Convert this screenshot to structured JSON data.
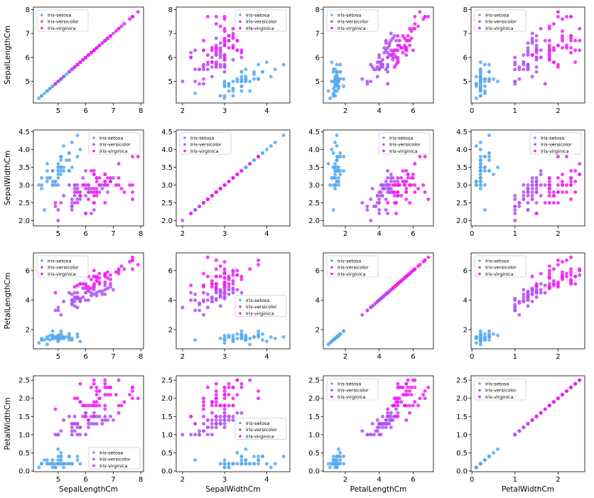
{
  "colors": {
    "Iris-setosa": "#5aaaf0",
    "Iris-versicolor": "#b250f5",
    "Iris-virginica": "#f01ef5"
  },
  "legend_labels": [
    "Iris-setosa",
    "Iris-versicolor",
    "Iris-virginica"
  ],
  "variables": [
    "SepalLengthCm",
    "SepalWidthCm",
    "PetalLengthCm",
    "PetalWidthCm"
  ],
  "axes": {
    "SepalLengthCm": {
      "lim": [
        4.1,
        8.1
      ],
      "ticks": [
        "5",
        "6",
        "7",
        "8"
      ]
    },
    "SepalWidthCm": {
      "lim": [
        1.85,
        4.55
      ],
      "ticks": [
        "2",
        "3",
        "4"
      ]
    },
    "PetalLengthCm": {
      "lim": [
        0.7,
        7.2
      ],
      "ticks": [
        "2",
        "4",
        "6"
      ]
    },
    "PetalWidthCm": {
      "lim": [
        -0.02,
        2.62
      ],
      "ticks": [
        "0",
        "1",
        "2"
      ]
    }
  },
  "ytick_labels": {
    "SepalLengthCm": [
      "5",
      "6",
      "7",
      "8"
    ],
    "SepalWidthCm": [
      "2.0",
      "2.5",
      "3.0",
      "3.5",
      "4.0",
      "4.5"
    ],
    "PetalLengthCm": [
      "2",
      "4",
      "6"
    ],
    "PetalWidthCm": [
      "0.0",
      "0.5",
      "1.0",
      "1.5",
      "2.0",
      "2.5"
    ]
  },
  "legend_positions": [
    [
      "upper-left",
      "upper-right",
      "upper-left",
      "upper-left"
    ],
    [
      "upper-right",
      "upper-left",
      "upper-right",
      "upper-right"
    ],
    [
      "upper-left",
      "center-right",
      "upper-left",
      "upper-left"
    ],
    [
      "lower-right",
      "center-right",
      "upper-left",
      "upper-left"
    ]
  ],
  "chart_data": {
    "type": "scatter",
    "layout": "pairplot 4x4",
    "grid": false,
    "series": [
      {
        "name": "Iris-setosa",
        "columns": [
          "SepalLengthCm",
          "SepalWidthCm",
          "PetalLengthCm",
          "PetalWidthCm"
        ],
        "points": [
          [
            5.1,
            3.5,
            1.4,
            0.2
          ],
          [
            4.9,
            3.0,
            1.4,
            0.2
          ],
          [
            4.7,
            3.2,
            1.3,
            0.2
          ],
          [
            4.6,
            3.1,
            1.5,
            0.2
          ],
          [
            5.0,
            3.6,
            1.4,
            0.2
          ],
          [
            5.4,
            3.9,
            1.7,
            0.4
          ],
          [
            4.6,
            3.4,
            1.4,
            0.3
          ],
          [
            5.0,
            3.4,
            1.5,
            0.2
          ],
          [
            4.4,
            2.9,
            1.4,
            0.2
          ],
          [
            4.9,
            3.1,
            1.5,
            0.1
          ],
          [
            5.4,
            3.7,
            1.5,
            0.2
          ],
          [
            4.8,
            3.4,
            1.6,
            0.2
          ],
          [
            4.8,
            3.0,
            1.4,
            0.1
          ],
          [
            4.3,
            3.0,
            1.1,
            0.1
          ],
          [
            5.8,
            4.0,
            1.2,
            0.2
          ],
          [
            5.7,
            4.4,
            1.5,
            0.4
          ],
          [
            5.4,
            3.9,
            1.3,
            0.4
          ],
          [
            5.1,
            3.5,
            1.4,
            0.3
          ],
          [
            5.7,
            3.8,
            1.7,
            0.3
          ],
          [
            5.1,
            3.8,
            1.5,
            0.3
          ],
          [
            5.4,
            3.4,
            1.7,
            0.2
          ],
          [
            5.1,
            3.7,
            1.5,
            0.4
          ],
          [
            4.6,
            3.6,
            1.0,
            0.2
          ],
          [
            5.1,
            3.3,
            1.7,
            0.5
          ],
          [
            4.8,
            3.4,
            1.9,
            0.2
          ],
          [
            5.0,
            3.0,
            1.6,
            0.2
          ],
          [
            5.0,
            3.4,
            1.6,
            0.4
          ],
          [
            5.2,
            3.5,
            1.5,
            0.2
          ],
          [
            5.2,
            3.4,
            1.4,
            0.2
          ],
          [
            4.7,
            3.2,
            1.6,
            0.2
          ],
          [
            4.8,
            3.1,
            1.6,
            0.2
          ],
          [
            5.4,
            3.4,
            1.5,
            0.4
          ],
          [
            5.2,
            4.1,
            1.5,
            0.1
          ],
          [
            5.5,
            4.2,
            1.4,
            0.2
          ],
          [
            4.9,
            3.1,
            1.5,
            0.1
          ],
          [
            5.0,
            3.2,
            1.2,
            0.2
          ],
          [
            5.5,
            3.5,
            1.3,
            0.2
          ],
          [
            4.9,
            3.1,
            1.5,
            0.1
          ],
          [
            4.4,
            3.0,
            1.3,
            0.2
          ],
          [
            5.1,
            3.4,
            1.5,
            0.2
          ],
          [
            5.0,
            3.5,
            1.3,
            0.3
          ],
          [
            4.5,
            2.3,
            1.3,
            0.3
          ],
          [
            4.4,
            3.2,
            1.3,
            0.2
          ],
          [
            5.0,
            3.5,
            1.6,
            0.6
          ],
          [
            5.1,
            3.8,
            1.9,
            0.4
          ],
          [
            4.8,
            3.0,
            1.4,
            0.3
          ],
          [
            5.1,
            3.8,
            1.6,
            0.2
          ],
          [
            4.6,
            3.2,
            1.4,
            0.2
          ],
          [
            5.3,
            3.7,
            1.5,
            0.2
          ],
          [
            5.0,
            3.3,
            1.4,
            0.2
          ]
        ]
      },
      {
        "name": "Iris-versicolor",
        "columns": [
          "SepalLengthCm",
          "SepalWidthCm",
          "PetalLengthCm",
          "PetalWidthCm"
        ],
        "points": [
          [
            7.0,
            3.2,
            4.7,
            1.4
          ],
          [
            6.4,
            3.2,
            4.5,
            1.5
          ],
          [
            6.9,
            3.1,
            4.9,
            1.5
          ],
          [
            5.5,
            2.3,
            4.0,
            1.3
          ],
          [
            6.5,
            2.8,
            4.6,
            1.5
          ],
          [
            5.7,
            2.8,
            4.5,
            1.3
          ],
          [
            6.3,
            3.3,
            4.7,
            1.6
          ],
          [
            4.9,
            2.4,
            3.3,
            1.0
          ],
          [
            6.6,
            2.9,
            4.6,
            1.3
          ],
          [
            5.2,
            2.7,
            3.9,
            1.4
          ],
          [
            5.0,
            2.0,
            3.5,
            1.0
          ],
          [
            5.9,
            3.0,
            4.2,
            1.5
          ],
          [
            6.0,
            2.2,
            4.0,
            1.0
          ],
          [
            6.1,
            2.9,
            4.7,
            1.4
          ],
          [
            5.6,
            2.9,
            3.6,
            1.3
          ],
          [
            6.7,
            3.1,
            4.4,
            1.4
          ],
          [
            5.6,
            3.0,
            4.5,
            1.5
          ],
          [
            5.8,
            2.7,
            4.1,
            1.0
          ],
          [
            6.2,
            2.2,
            4.5,
            1.5
          ],
          [
            5.6,
            2.5,
            3.9,
            1.1
          ],
          [
            5.9,
            3.2,
            4.8,
            1.8
          ],
          [
            6.1,
            2.8,
            4.0,
            1.3
          ],
          [
            6.3,
            2.5,
            4.9,
            1.5
          ],
          [
            6.1,
            2.8,
            4.7,
            1.2
          ],
          [
            6.4,
            2.9,
            4.3,
            1.3
          ],
          [
            6.6,
            3.0,
            4.4,
            1.4
          ],
          [
            6.8,
            2.8,
            4.8,
            1.4
          ],
          [
            6.7,
            3.0,
            5.0,
            1.7
          ],
          [
            6.0,
            2.9,
            4.5,
            1.5
          ],
          [
            5.7,
            2.6,
            3.5,
            1.0
          ],
          [
            5.5,
            2.4,
            3.8,
            1.1
          ],
          [
            5.5,
            2.4,
            3.7,
            1.0
          ],
          [
            5.8,
            2.7,
            3.9,
            1.2
          ],
          [
            6.0,
            2.7,
            5.1,
            1.6
          ],
          [
            5.4,
            3.0,
            4.5,
            1.5
          ],
          [
            6.0,
            3.4,
            4.5,
            1.6
          ],
          [
            6.7,
            3.1,
            4.7,
            1.5
          ],
          [
            6.3,
            2.3,
            4.4,
            1.3
          ],
          [
            5.6,
            3.0,
            4.1,
            1.3
          ],
          [
            5.5,
            2.5,
            4.0,
            1.3
          ],
          [
            5.5,
            2.6,
            4.4,
            1.2
          ],
          [
            6.1,
            3.0,
            4.6,
            1.4
          ],
          [
            5.8,
            2.6,
            4.0,
            1.2
          ],
          [
            5.0,
            2.3,
            3.3,
            1.0
          ],
          [
            5.6,
            2.7,
            4.2,
            1.3
          ],
          [
            5.7,
            3.0,
            4.2,
            1.2
          ],
          [
            5.7,
            2.9,
            4.2,
            1.3
          ],
          [
            6.2,
            2.9,
            4.3,
            1.3
          ],
          [
            5.1,
            2.5,
            3.0,
            1.1
          ],
          [
            5.7,
            2.8,
            4.1,
            1.3
          ]
        ]
      },
      {
        "name": "Iris-virginica",
        "columns": [
          "SepalLengthCm",
          "SepalWidthCm",
          "PetalLengthCm",
          "PetalWidthCm"
        ],
        "points": [
          [
            6.3,
            3.3,
            6.0,
            2.5
          ],
          [
            5.8,
            2.7,
            5.1,
            1.9
          ],
          [
            7.1,
            3.0,
            5.9,
            2.1
          ],
          [
            6.3,
            2.9,
            5.6,
            1.8
          ],
          [
            6.5,
            3.0,
            5.8,
            2.2
          ],
          [
            7.6,
            3.0,
            6.6,
            2.1
          ],
          [
            4.9,
            2.5,
            4.5,
            1.7
          ],
          [
            7.3,
            2.9,
            6.3,
            1.8
          ],
          [
            6.7,
            2.5,
            5.8,
            1.8
          ],
          [
            7.2,
            3.6,
            6.1,
            2.5
          ],
          [
            6.5,
            3.2,
            5.1,
            2.0
          ],
          [
            6.4,
            2.7,
            5.3,
            1.9
          ],
          [
            6.8,
            3.0,
            5.5,
            2.1
          ],
          [
            5.7,
            2.5,
            5.0,
            2.0
          ],
          [
            5.8,
            2.8,
            5.1,
            2.4
          ],
          [
            6.4,
            3.2,
            5.3,
            2.3
          ],
          [
            6.5,
            3.0,
            5.5,
            1.8
          ],
          [
            7.7,
            3.8,
            6.7,
            2.2
          ],
          [
            7.7,
            2.6,
            6.9,
            2.3
          ],
          [
            6.0,
            2.2,
            5.0,
            1.5
          ],
          [
            6.9,
            3.2,
            5.7,
            2.3
          ],
          [
            5.6,
            2.8,
            4.9,
            2.0
          ],
          [
            7.7,
            2.8,
            6.7,
            2.0
          ],
          [
            6.3,
            2.7,
            4.9,
            1.8
          ],
          [
            6.7,
            3.3,
            5.7,
            2.1
          ],
          [
            7.2,
            3.2,
            6.0,
            1.8
          ],
          [
            6.2,
            2.8,
            4.8,
            1.8
          ],
          [
            6.1,
            3.0,
            4.9,
            1.8
          ],
          [
            6.4,
            2.8,
            5.6,
            2.1
          ],
          [
            7.2,
            3.0,
            5.8,
            1.6
          ],
          [
            7.4,
            2.8,
            6.1,
            1.9
          ],
          [
            7.9,
            3.8,
            6.4,
            2.0
          ],
          [
            6.4,
            2.8,
            5.6,
            2.2
          ],
          [
            6.3,
            2.8,
            5.1,
            1.5
          ],
          [
            6.1,
            2.6,
            5.6,
            1.4
          ],
          [
            7.7,
            3.0,
            6.1,
            2.3
          ],
          [
            6.3,
            3.4,
            5.6,
            2.4
          ],
          [
            6.4,
            3.1,
            5.5,
            1.8
          ],
          [
            6.0,
            3.0,
            4.8,
            1.8
          ],
          [
            6.9,
            3.1,
            5.4,
            2.1
          ],
          [
            6.7,
            3.1,
            5.6,
            2.4
          ],
          [
            6.9,
            3.1,
            5.1,
            2.3
          ],
          [
            5.8,
            2.7,
            5.1,
            1.9
          ],
          [
            6.8,
            3.2,
            5.9,
            2.3
          ],
          [
            6.7,
            3.3,
            5.7,
            2.5
          ],
          [
            6.7,
            3.0,
            5.2,
            2.3
          ],
          [
            6.3,
            2.5,
            5.0,
            1.9
          ],
          [
            6.5,
            3.0,
            5.2,
            2.0
          ],
          [
            6.2,
            3.4,
            5.4,
            2.3
          ],
          [
            5.9,
            3.0,
            5.1,
            1.8
          ]
        ]
      }
    ]
  }
}
